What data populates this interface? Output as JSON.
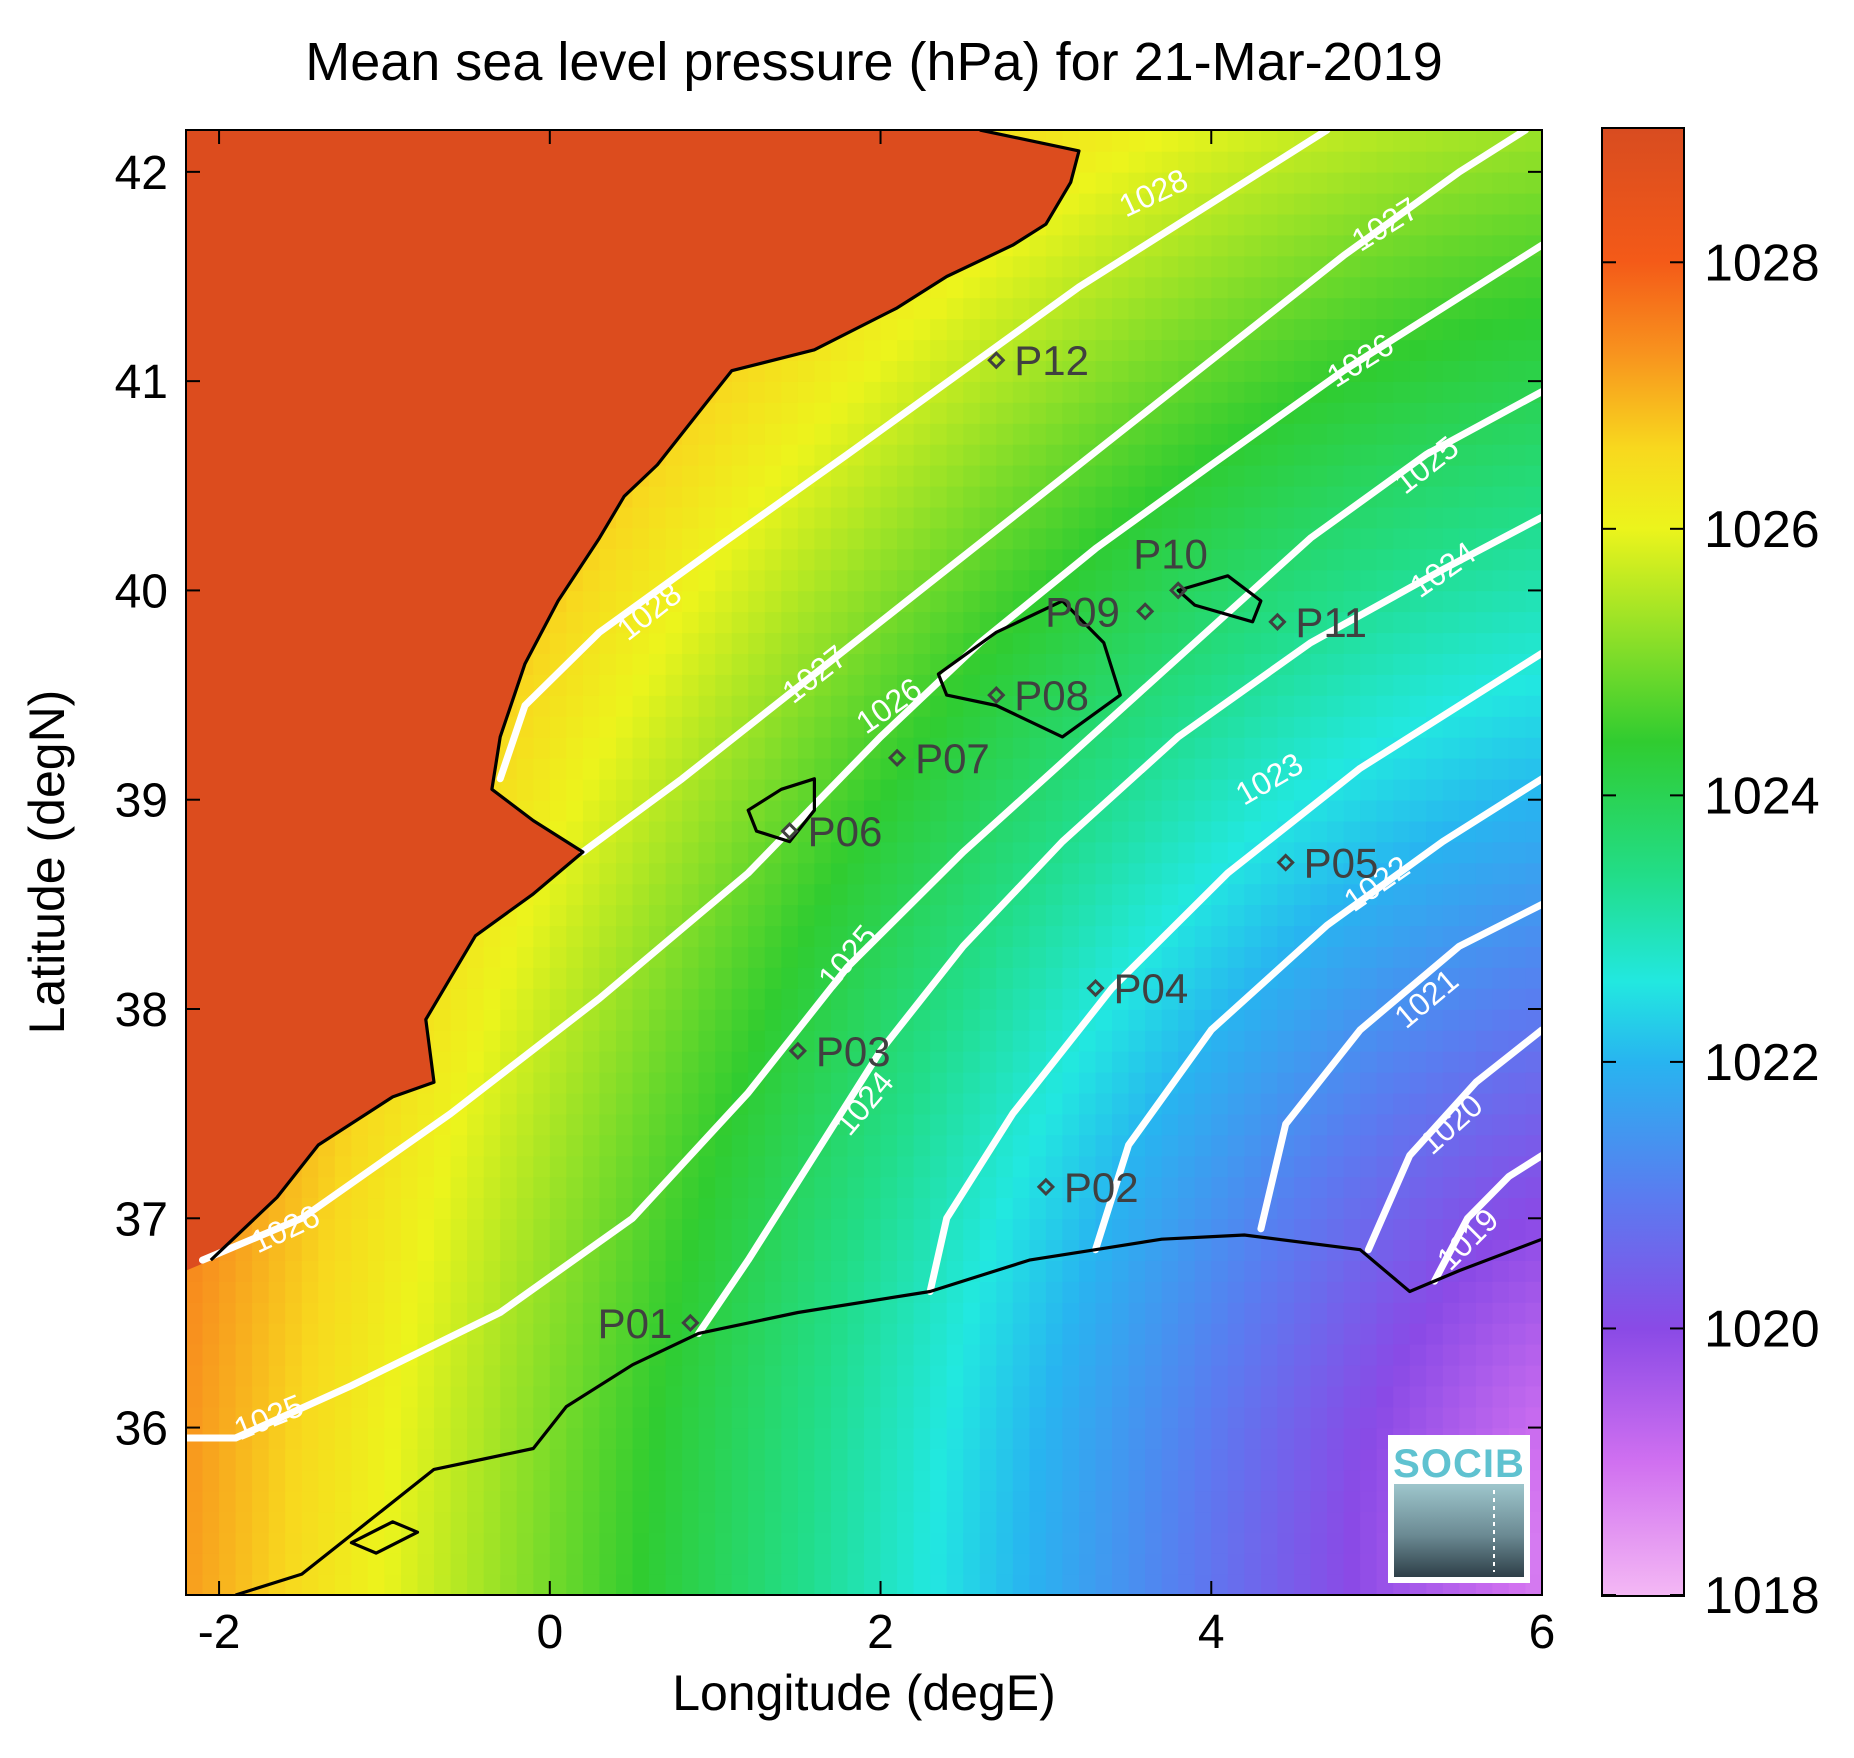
{
  "title": "Mean sea level pressure (hPa) for 21-Mar-2019",
  "axes": {
    "xlabel": "Longitude (degE)",
    "ylabel": "Latitude (degN)",
    "xlim": [
      -2.2,
      6.0
    ],
    "ylim": [
      35.2,
      42.2
    ],
    "xticks": [
      -2,
      0,
      2,
      4,
      6
    ],
    "yticks": [
      36,
      37,
      38,
      39,
      40,
      41,
      42
    ]
  },
  "colorbar": {
    "range": [
      1018,
      1029
    ],
    "ticks": [
      1018,
      1020,
      1022,
      1024,
      1026,
      1028
    ],
    "stops": [
      {
        "v": 1018.0,
        "c": "#f4b8f4"
      },
      {
        "v": 1019.0,
        "c": "#d070f0"
      },
      {
        "v": 1020.0,
        "c": "#8a4ae6"
      },
      {
        "v": 1021.0,
        "c": "#5a7cf0"
      },
      {
        "v": 1022.0,
        "c": "#28b4f0"
      },
      {
        "v": 1022.6,
        "c": "#22e8e0"
      },
      {
        "v": 1023.4,
        "c": "#22dd88"
      },
      {
        "v": 1024.4,
        "c": "#30cc30"
      },
      {
        "v": 1025.2,
        "c": "#90e028"
      },
      {
        "v": 1026.0,
        "c": "#ecf41c"
      },
      {
        "v": 1026.6,
        "c": "#f8d81e"
      },
      {
        "v": 1027.3,
        "c": "#f8941e"
      },
      {
        "v": 1028.0,
        "c": "#f45a18"
      },
      {
        "v": 1029.0,
        "c": "#d84c20"
      }
    ]
  },
  "colors": {
    "land_high": "#dc4c1e",
    "contour": "#ffffff",
    "coast": "#000000",
    "station": "#404040"
  },
  "contours": [
    {
      "label": "1028",
      "label_at": [
        0.6,
        39.9
      ],
      "label_angle": -38,
      "label_at2": [
        3.65,
        41.9
      ],
      "label_angle2": -25
    },
    {
      "label": "1027",
      "label_at": [
        1.6,
        39.6
      ],
      "label_angle": -38,
      "label_at2": [
        5.05,
        41.75
      ],
      "label_angle2": -32
    },
    {
      "label": "1026",
      "label_at": [
        -1.6,
        36.95
      ],
      "label_angle": -25,
      "label_at2": [
        2.05,
        39.45
      ],
      "label_angle2": -35
    },
    {
      "label": "1026",
      "label_at": [
        4.9,
        41.1
      ],
      "label_angle": -32,
      "label_at2": null,
      "label_angle2": 0
    },
    {
      "label": "1025",
      "label_at": [
        -1.7,
        36.05
      ],
      "label_angle": -22,
      "label_at2": [
        1.8,
        38.25
      ],
      "label_angle2": -50
    },
    {
      "label": "1025",
      "label_at": [
        5.3,
        40.6
      ],
      "label_angle": -38,
      "label_at2": null,
      "label_angle2": 0
    },
    {
      "label": "1024",
      "label_at": [
        1.9,
        37.55
      ],
      "label_angle": -50,
      "label_at2": [
        5.4,
        40.1
      ],
      "label_angle2": -35
    },
    {
      "label": "1023",
      "label_at": [
        4.35,
        39.1
      ],
      "label_angle": -30,
      "label_at2": null,
      "label_angle2": 0
    },
    {
      "label": "1022",
      "label_at": [
        5.0,
        38.6
      ],
      "label_angle": -35,
      "label_at2": null,
      "label_angle2": 0
    },
    {
      "label": "1021",
      "label_at": [
        5.3,
        38.05
      ],
      "label_angle": -40,
      "label_at2": null,
      "label_angle2": 0
    },
    {
      "label": "1020",
      "label_at": [
        5.45,
        37.45
      ],
      "label_angle": -42,
      "label_at2": null,
      "label_angle2": 0
    },
    {
      "label": "1019",
      "label_at": [
        5.55,
        36.9
      ],
      "label_angle": -45,
      "label_at2": null,
      "label_angle2": 0
    }
  ],
  "stations": [
    {
      "id": "P01",
      "lon": 0.85,
      "lat": 36.5,
      "side": "left"
    },
    {
      "id": "P02",
      "lon": 3.0,
      "lat": 37.15,
      "side": "right"
    },
    {
      "id": "P03",
      "lon": 1.5,
      "lat": 37.8,
      "side": "right"
    },
    {
      "id": "P04",
      "lon": 3.3,
      "lat": 38.1,
      "side": "right"
    },
    {
      "id": "P05",
      "lon": 4.45,
      "lat": 38.7,
      "side": "right"
    },
    {
      "id": "P06",
      "lon": 1.45,
      "lat": 38.85,
      "side": "right"
    },
    {
      "id": "P07",
      "lon": 2.1,
      "lat": 39.2,
      "side": "right"
    },
    {
      "id": "P08",
      "lon": 2.7,
      "lat": 39.5,
      "side": "right"
    },
    {
      "id": "P09",
      "lon": 3.6,
      "lat": 39.9,
      "side": "leftover"
    },
    {
      "id": "P10",
      "lon": 3.8,
      "lat": 40.0,
      "side": "above"
    },
    {
      "id": "P11",
      "lon": 4.4,
      "lat": 39.85,
      "side": "right"
    },
    {
      "id": "P12",
      "lon": 2.7,
      "lat": 41.1,
      "side": "right"
    }
  ],
  "logo": {
    "text": "SOCIB"
  }
}
